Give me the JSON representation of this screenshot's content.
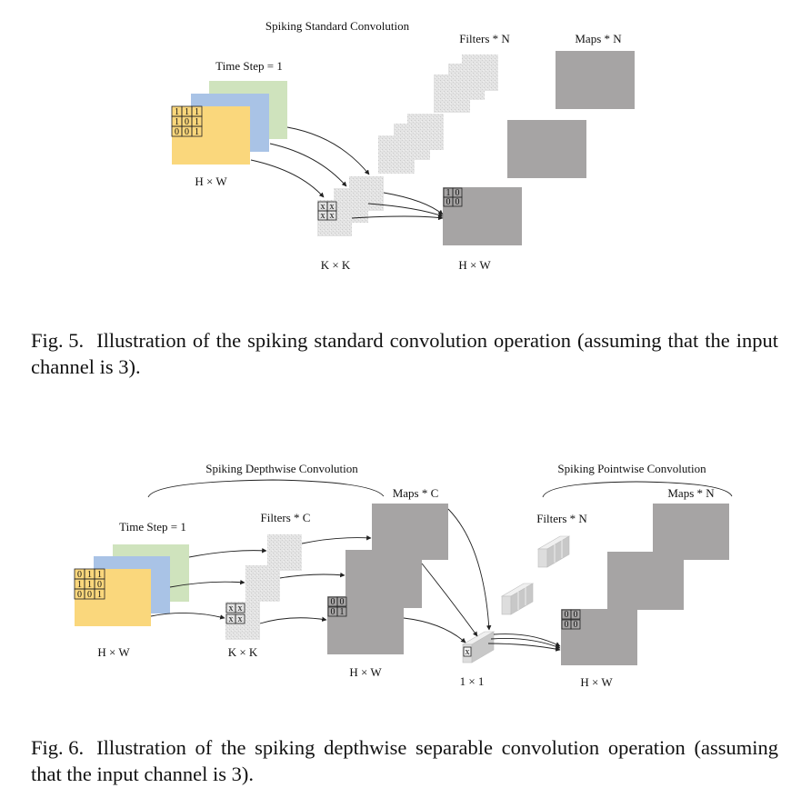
{
  "fig5": {
    "title": "Spiking Standard Convolution",
    "time_step": "Time Step = 1",
    "filters_label": "Filters * N",
    "maps_label": "Maps * N",
    "input_size": "H × W",
    "kernel_size": "K × K",
    "output_size": "H × W",
    "input_grid": [
      [
        "1",
        "1",
        "1"
      ],
      [
        "1",
        "0",
        "1"
      ],
      [
        "0",
        "0",
        "1"
      ]
    ],
    "kernel_grid": [
      [
        "x",
        "x"
      ],
      [
        "x",
        "x"
      ]
    ],
    "output_grid": [
      [
        "1",
        "0"
      ],
      [
        "0",
        "0"
      ]
    ],
    "caption_number": "Fig. 5.",
    "caption_text": "Illustration of the spiking standard convolution operation (assuming that the input channel is 3)."
  },
  "fig6": {
    "depthwise_title": "Spiking Depthwise Convolution",
    "pointwise_title": "Spiking Pointwise Convolution",
    "time_step": "Time Step = 1",
    "depthwise_filters_label": "Filters * C",
    "depthwise_maps_label": "Maps * C",
    "pointwise_filters_label": "Filters * N",
    "pointwise_maps_label": "Maps * N",
    "input_size": "H × W",
    "kernel_size": "K × K",
    "depthwise_output_size": "H × W",
    "pointwise_kernel_size": "1 × 1",
    "pointwise_output_size": "H × W",
    "input_grid": [
      [
        "0",
        "1",
        "1"
      ],
      [
        "1",
        "1",
        "0"
      ],
      [
        "0",
        "0",
        "1"
      ]
    ],
    "kernel_grid": [
      [
        "x",
        "x"
      ],
      [
        "x",
        "x"
      ]
    ],
    "depthwise_map_grid": [
      [
        "0",
        "0"
      ],
      [
        "0",
        "1"
      ]
    ],
    "pointwise_kernel_cell": "x",
    "output_grid": [
      [
        "0",
        "0"
      ],
      [
        "0",
        "0"
      ]
    ],
    "caption_number": "Fig. 6.",
    "caption_text": "Illustration of the spiking depthwise separable convolution operation (assuming that the input channel is 3)."
  },
  "colors": {
    "input_green": "#cfe3bd",
    "input_blue": "#a9c3e6",
    "input_yellow": "#fad77c",
    "filter_gray": "#dcdcdc",
    "map_gray": "#a6a4a4",
    "line": "#222222"
  }
}
